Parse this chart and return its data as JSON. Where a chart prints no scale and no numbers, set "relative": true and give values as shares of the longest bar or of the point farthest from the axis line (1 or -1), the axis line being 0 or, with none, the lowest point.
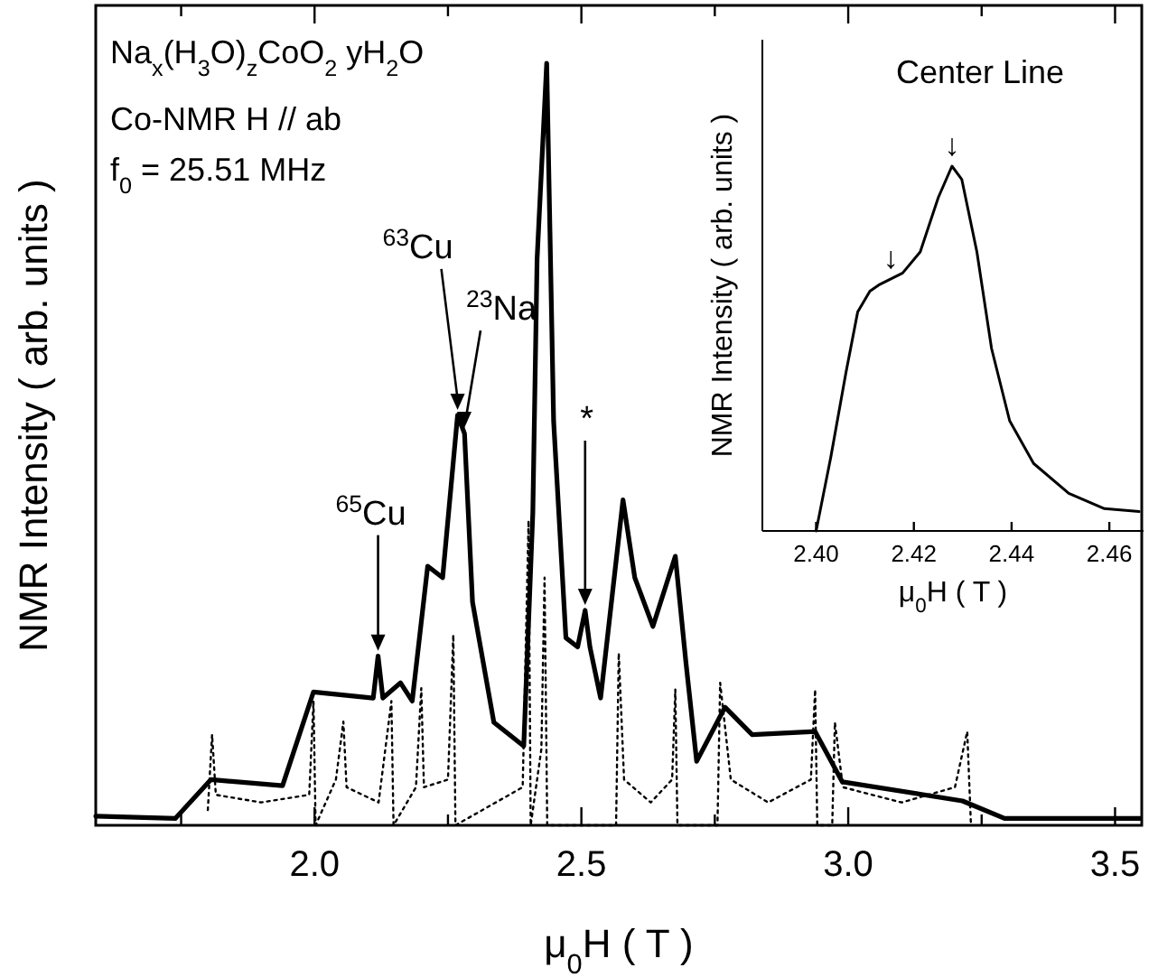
{
  "chart_data": [
    {
      "type": "line",
      "xlabel": "μ$_{0}$H ( T )",
      "ylabel": "NMR Intensity ( arb. units )",
      "relative": true,
      "xlim": [
        1.59,
        3.55
      ],
      "xticks": [
        {
          "value": 1.75,
          "label": null
        },
        {
          "value": 2,
          "label": "2.0"
        },
        {
          "value": 2.25,
          "label": null
        },
        {
          "value": 2.5,
          "label": "2.5"
        },
        {
          "value": 2.75,
          "label": null
        },
        {
          "value": 3,
          "label": "3.0"
        },
        {
          "value": 3.25,
          "label": null
        },
        {
          "value": 3.5,
          "label": "3.5"
        }
      ],
      "annotations": [
        "Na$_{x}$(H$_{3}$O)$_{z}$CoO$_{2}$ yH$_{2}$O",
        "Co-NMR  H // ab",
        "f$_{0}$ = 25.51 MHz",
        {
          "text": "$^{65}$Cu",
          "x": 2.119,
          "y": 0.222
        },
        {
          "text": "$^{63}$Cu",
          "x": 2.268,
          "y": 0.538
        },
        "$^{23}$Na",
        {
          "text": "*",
          "x": 2.507,
          "y": 0.282
        }
      ],
      "series": [
        {
          "color": "#000000",
          "line_style": "solid",
          "x": [
            1.59,
            1.739,
            1.806,
            1.94,
            1.998,
            2.11,
            2.119,
            2.128,
            2.161,
            2.183,
            2.212,
            2.24,
            2.268,
            2.281,
            2.296,
            2.336,
            2.392,
            2.409,
            2.417,
            2.435,
            2.448,
            2.471,
            2.493,
            2.507,
            2.516,
            2.536,
            2.578,
            2.6,
            2.634,
            2.676,
            2.696,
            2.716,
            2.769,
            2.82,
            2.938,
            2.989,
            3.214,
            3.293,
            3.496,
            3.547
          ],
          "values": [
            0.012,
            0.009,
            0.06,
            0.052,
            0.175,
            0.167,
            0.222,
            0.167,
            0.187,
            0.163,
            0.34,
            0.325,
            0.538,
            0.514,
            0.293,
            0.135,
            0.104,
            0.41,
            0.743,
            1.0,
            0.53,
            0.246,
            0.234,
            0.282,
            0.234,
            0.167,
            0.427,
            0.325,
            0.261,
            0.353,
            0.213,
            0.084,
            0.155,
            0.119,
            0.123,
            0.057,
            0.032,
            0.009,
            0.009,
            0.009
          ]
        },
        {
          "color": "#000000",
          "line_style": "dotted",
          "x": [
            1.8,
            1.808,
            1.815,
            1.9,
            1.99,
            1.998,
            2.002,
            2.04,
            2.054,
            2.06,
            2.12,
            2.144,
            2.148,
            2.19,
            2.2,
            2.205,
            2.25,
            2.26,
            2.264,
            2.39,
            2.401,
            2.405,
            2.425,
            2.431,
            2.436,
            2.565,
            2.57,
            2.58,
            2.63,
            2.67,
            2.676,
            2.68,
            2.755,
            2.76,
            2.78,
            2.85,
            2.93,
            2.938,
            2.942,
            2.97,
            2.975,
            2.99,
            3.1,
            3.2,
            3.223,
            3.23
          ],
          "values": [
            0.02,
            0.119,
            0.04,
            0.03,
            0.04,
            0.163,
            0,
            0.06,
            0.136,
            0.05,
            0.03,
            0.163,
            0,
            0.05,
            0.18,
            0.05,
            0.06,
            0.25,
            0,
            0.05,
            0.4,
            0,
            0.1,
            0.325,
            0,
            0,
            0.226,
            0.06,
            0.03,
            0.06,
            0.178,
            0,
            0,
            0.187,
            0.06,
            0.03,
            0.06,
            0.178,
            0,
            0,
            0.135,
            0.05,
            0.03,
            0.05,
            0.123,
            0
          ]
        }
      ]
    },
    {
      "type": "line",
      "title": "Center Line",
      "xlabel": "μ$_{0}$H ( T )",
      "ylabel": "NMR Intensity ( arb. units )",
      "relative": true,
      "xlim": [
        2.389,
        2.467
      ],
      "xticks": [
        {
          "value": 2.4,
          "label": "2.40"
        },
        {
          "value": 2.42,
          "label": "2.42"
        },
        {
          "value": 2.44,
          "label": "2.44"
        },
        {
          "value": 2.46,
          "label": "2.46"
        }
      ],
      "annotations": [
        {
          "text": "↓",
          "x": 2.4153,
          "y": 0.69
        },
        {
          "text": "↓",
          "x": 2.4278,
          "y": 1.0
        }
      ],
      "series": [
        {
          "color": "#000000",
          "line_style": "solid",
          "x": [
            2.4,
            2.403,
            2.4061,
            2.4085,
            2.411,
            2.4128,
            2.4177,
            2.4213,
            2.425,
            2.4278,
            2.4298,
            2.4329,
            2.4359,
            2.4396,
            2.4445,
            2.4517,
            2.459,
            2.4661
          ],
          "values": [
            0,
            0.202,
            0.434,
            0.6,
            0.657,
            0.674,
            0.707,
            0.765,
            0.914,
            1.0,
            0.964,
            0.765,
            0.5,
            0.302,
            0.185,
            0.103,
            0.061,
            0.053
          ]
        }
      ]
    }
  ]
}
